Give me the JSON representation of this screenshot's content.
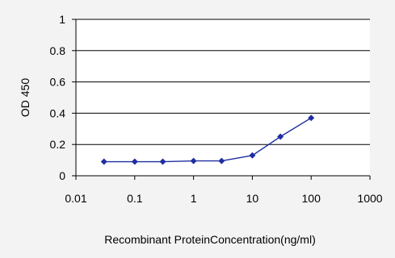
{
  "colors": {
    "background": "#f3f3f3",
    "plot_background": "#ffffff",
    "series": "#1f2fa0",
    "axis": "#000000",
    "grid": "#000000"
  },
  "chart_data": {
    "type": "line",
    "title": "",
    "xlabel": "Recombinant ProteinConcentration(ng/ml)",
    "ylabel": "OD 450",
    "x_scale": "log",
    "xlim": [
      0.01,
      1000
    ],
    "ylim": [
      0,
      1
    ],
    "x_ticks": [
      0.01,
      0.1,
      1,
      10,
      100,
      1000
    ],
    "x_tick_labels": [
      "0.01",
      "0.1",
      "1",
      "10",
      "100",
      "1000"
    ],
    "y_ticks": [
      0,
      0.2,
      0.4,
      0.6,
      0.8,
      1
    ],
    "y_tick_labels": [
      "0",
      "0.2",
      "0.4",
      "0.6",
      "0.8",
      "1"
    ],
    "grid": "horizontal",
    "legend": "none",
    "marker": "diamond",
    "series": [
      {
        "x": [
          0.03,
          0.1,
          0.3,
          1,
          3,
          10,
          30,
          100
        ],
        "values": [
          0.09,
          0.09,
          0.09,
          0.095,
          0.095,
          0.13,
          0.25,
          0.37
        ]
      }
    ]
  }
}
